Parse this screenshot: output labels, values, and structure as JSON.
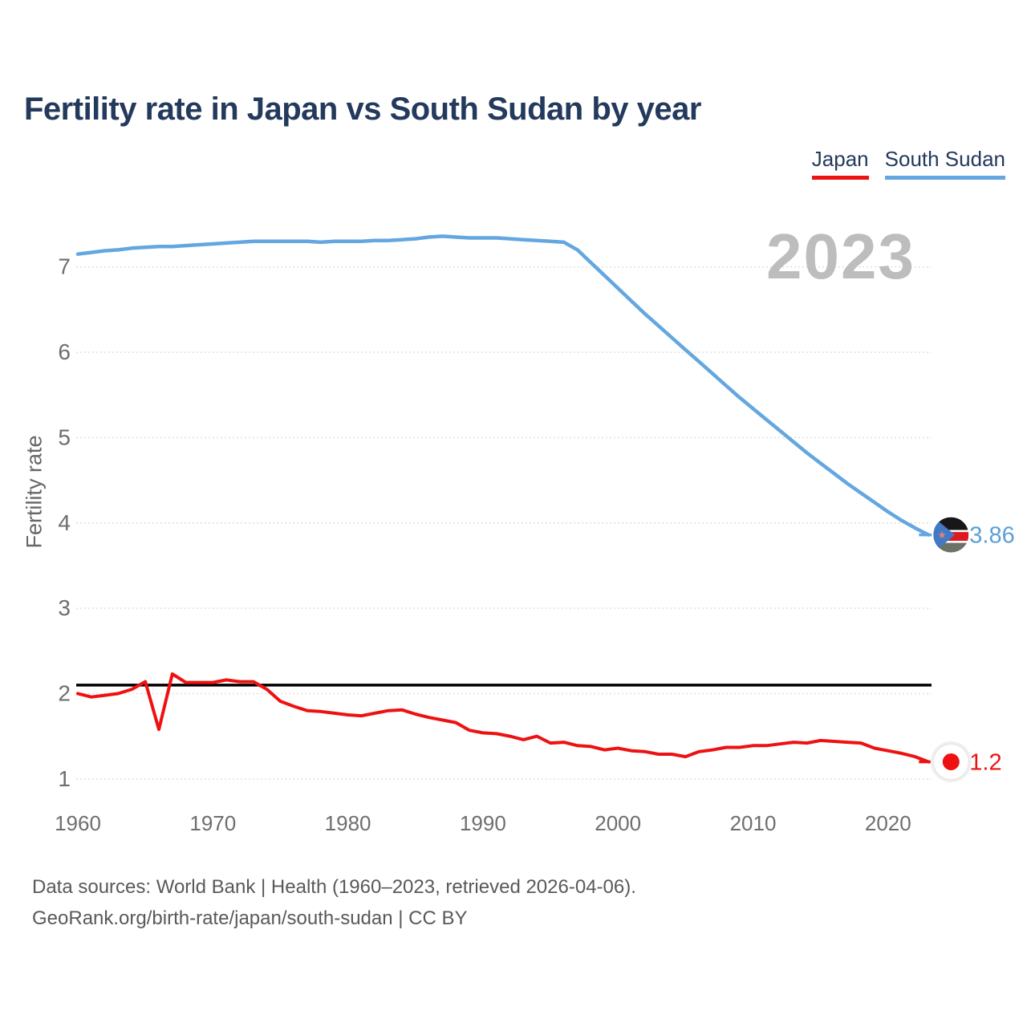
{
  "title": "Fertility rate in Japan vs South Sudan by year",
  "watermark": "2023",
  "y_axis_label": "Fertility rate",
  "legend": [
    {
      "label": "Japan",
      "color": "#ee1111"
    },
    {
      "label": "South Sudan",
      "color": "#64a7e0"
    }
  ],
  "footer": {
    "line1": "Data sources: World Bank | Health (1960–2023, retrieved 2026-04-06).",
    "line2": "GeoRank.org/birth-rate/japan/south-sudan | CC BY"
  },
  "icons": [
    {
      "name": "japan-flag-icon",
      "meaning": "Japan flag in circle (white field, red sun disc)"
    },
    {
      "name": "south-sudan-flag-icon",
      "meaning": "South Sudan flag in circle (black/white/red/white/green stripes, blue triangle, star)"
    }
  ],
  "chart_data": {
    "type": "line",
    "title": "Fertility rate in Japan vs South Sudan by year",
    "xlabel": "",
    "ylabel": "Fertility rate",
    "x_range": [
      1960,
      2023
    ],
    "ylim": [
      0.8,
      7.6
    ],
    "xticks": [
      1960,
      1970,
      1980,
      1990,
      2000,
      2010,
      2020
    ],
    "yticks": [
      1,
      2,
      3,
      4,
      5,
      6,
      7
    ],
    "grid": "horizontal-dotted",
    "legend_position": "top-right",
    "reference_line": {
      "value": 2.1,
      "color": "#000000",
      "meaning": "replacement-level fertility"
    },
    "years": [
      1960,
      1961,
      1962,
      1963,
      1964,
      1965,
      1966,
      1967,
      1968,
      1969,
      1970,
      1971,
      1972,
      1973,
      1974,
      1975,
      1976,
      1977,
      1978,
      1979,
      1980,
      1981,
      1982,
      1983,
      1984,
      1985,
      1986,
      1987,
      1988,
      1989,
      1990,
      1991,
      1992,
      1993,
      1994,
      1995,
      1996,
      1997,
      1998,
      1999,
      2000,
      2001,
      2002,
      2003,
      2004,
      2005,
      2006,
      2007,
      2008,
      2009,
      2010,
      2011,
      2012,
      2013,
      2014,
      2015,
      2016,
      2017,
      2018,
      2019,
      2020,
      2021,
      2022,
      2023
    ],
    "series": [
      {
        "name": "Japan",
        "color": "#ee1111",
        "end_label": "1.2",
        "values": [
          2.0,
          1.96,
          1.98,
          2.0,
          2.05,
          2.14,
          1.58,
          2.23,
          2.13,
          2.13,
          2.13,
          2.16,
          2.14,
          2.14,
          2.05,
          1.91,
          1.85,
          1.8,
          1.79,
          1.77,
          1.75,
          1.74,
          1.77,
          1.8,
          1.81,
          1.76,
          1.72,
          1.69,
          1.66,
          1.57,
          1.54,
          1.53,
          1.5,
          1.46,
          1.5,
          1.42,
          1.43,
          1.39,
          1.38,
          1.34,
          1.36,
          1.33,
          1.32,
          1.29,
          1.29,
          1.26,
          1.32,
          1.34,
          1.37,
          1.37,
          1.39,
          1.39,
          1.41,
          1.43,
          1.42,
          1.45,
          1.44,
          1.43,
          1.42,
          1.36,
          1.33,
          1.3,
          1.26,
          1.2
        ]
      },
      {
        "name": "South Sudan",
        "color": "#64a7e0",
        "end_label": "3.86",
        "values": [
          7.15,
          7.17,
          7.19,
          7.2,
          7.22,
          7.23,
          7.24,
          7.24,
          7.25,
          7.26,
          7.27,
          7.28,
          7.29,
          7.3,
          7.3,
          7.3,
          7.3,
          7.3,
          7.29,
          7.3,
          7.3,
          7.3,
          7.31,
          7.31,
          7.32,
          7.33,
          7.35,
          7.36,
          7.35,
          7.34,
          7.34,
          7.34,
          7.33,
          7.32,
          7.31,
          7.3,
          7.29,
          7.2,
          7.05,
          6.9,
          6.75,
          6.6,
          6.45,
          6.31,
          6.17,
          6.03,
          5.89,
          5.75,
          5.61,
          5.47,
          5.34,
          5.21,
          5.08,
          4.95,
          4.82,
          4.7,
          4.58,
          4.46,
          4.35,
          4.24,
          4.13,
          4.03,
          3.94,
          3.86
        ]
      }
    ]
  }
}
